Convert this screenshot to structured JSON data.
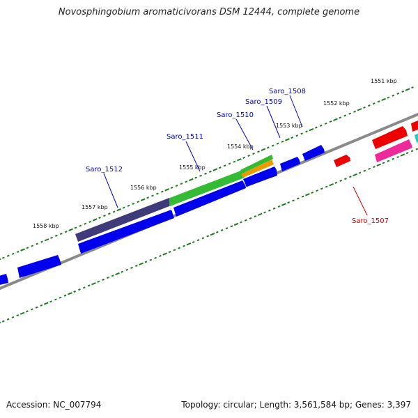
{
  "title": "Novosphingobium aromaticivorans DSM 12444, complete genome",
  "footer": {
    "accession": "Accession: NC_007794",
    "summary": "Topology: circular; Length: 3,561,584 bp; Genes: 3,397"
  },
  "scale_labels": [
    "1551 kbp",
    "1552 kbp",
    "1553 kbp",
    "1554 kbp",
    "1555 kbp",
    "1556 kbp",
    "1557 kbp",
    "1558 kbp"
  ],
  "gene_labels": [
    {
      "text": "Saro_1508",
      "color": "#0000cc"
    },
    {
      "text": "Saro_1509",
      "color": "#0000cc"
    },
    {
      "text": "Saro_1510",
      "color": "#0000cc"
    },
    {
      "text": "Saro_1511",
      "color": "#0000cc"
    },
    {
      "text": "Saro_1512",
      "color": "#0000cc"
    },
    {
      "text": "Saro_1507",
      "color": "#cc0000"
    }
  ],
  "colors": {
    "backbone": "#8a8a8a",
    "ticks": "#1e7a1e",
    "forward_cds": "#0000ee",
    "reverse_cds": "#ee0000",
    "highlight_purple": "#3f3a7a",
    "highlight_green": "#33bb33",
    "highlight_orange": "#ee9900",
    "pink": "#ee2a9a",
    "cyan": "#22cccc"
  }
}
